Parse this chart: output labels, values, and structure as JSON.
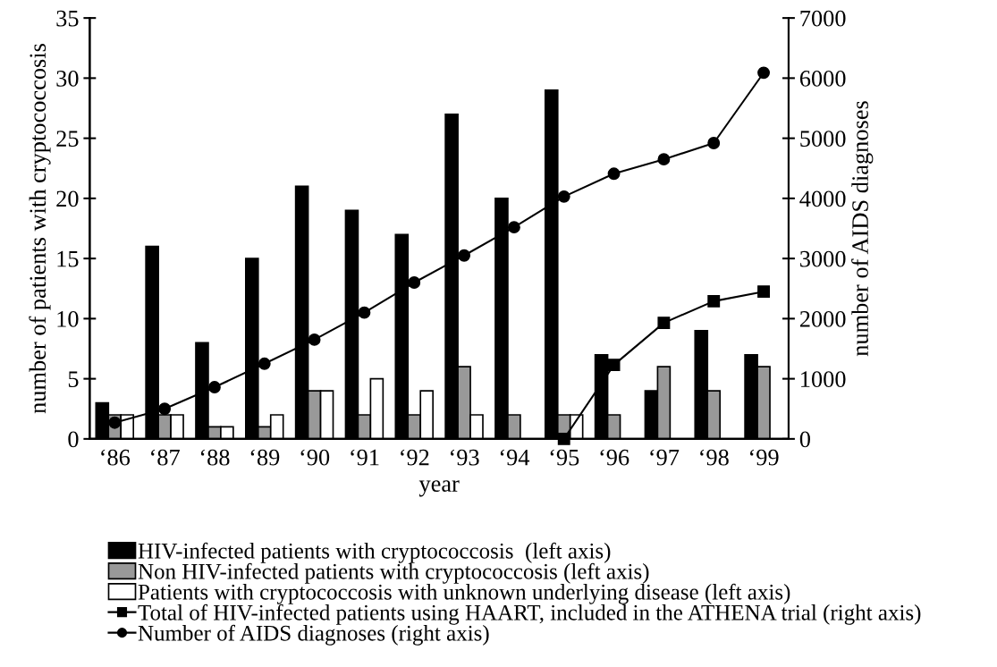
{
  "chart_data": {
    "type": "bar",
    "xlabel": "year",
    "ylabel": "number of patients with cryptococcosis",
    "y2label": "number of AIDS diagnoses",
    "categories": [
      "‘86",
      "‘87",
      "‘88",
      "‘89",
      "‘90",
      "‘91",
      "‘92",
      "‘93",
      "‘94",
      "‘95",
      "‘96",
      "‘97",
      "‘98",
      "‘99"
    ],
    "series": [
      {
        "name": "HIV-infected patients with cryptococcosis  (left axis)",
        "color": "#000000",
        "values": [
          3,
          16,
          8,
          15,
          21,
          19,
          17,
          27,
          20,
          29,
          7,
          4,
          9,
          7
        ]
      },
      {
        "name": "Non HIV-infected patients with cryptococcosis (left axis)",
        "color": "#999999",
        "values": [
          2,
          2,
          1,
          1,
          4,
          2,
          2,
          6,
          2,
          2,
          2,
          6,
          4,
          6
        ]
      },
      {
        "name": "Patients with cryptococcosis with unknown underlying disease (left axis)",
        "color": "#ffffff",
        "values": [
          2,
          2,
          1,
          2,
          4,
          5,
          4,
          2,
          null,
          2,
          null,
          null,
          null,
          null
        ]
      },
      {
        "name": "Total of HIV-infected patients using HAART, included in the ATHENA trial (right axis)",
        "type": "line",
        "axis": "y2",
        "marker": "square",
        "color": "#000000",
        "values": [
          null,
          null,
          null,
          null,
          null,
          null,
          null,
          null,
          null,
          0,
          1230,
          1930,
          2290,
          2450
        ]
      },
      {
        "name": "Number of AIDS diagnoses (right axis)",
        "type": "line",
        "axis": "y2",
        "marker": "circle",
        "color": "#000000",
        "values": [
          270,
          500,
          860,
          1250,
          1650,
          2100,
          2600,
          3050,
          3520,
          4030,
          4410,
          4650,
          4920,
          6090
        ]
      }
    ],
    "ylim": [
      0,
      35
    ],
    "yticks": [
      0,
      5,
      10,
      15,
      20,
      25,
      30,
      35
    ],
    "y2lim": [
      0,
      7000
    ],
    "y2ticks": [
      0,
      1000,
      2000,
      3000,
      4000,
      5000,
      6000,
      7000
    ],
    "grid": false,
    "legend": "bottom"
  }
}
